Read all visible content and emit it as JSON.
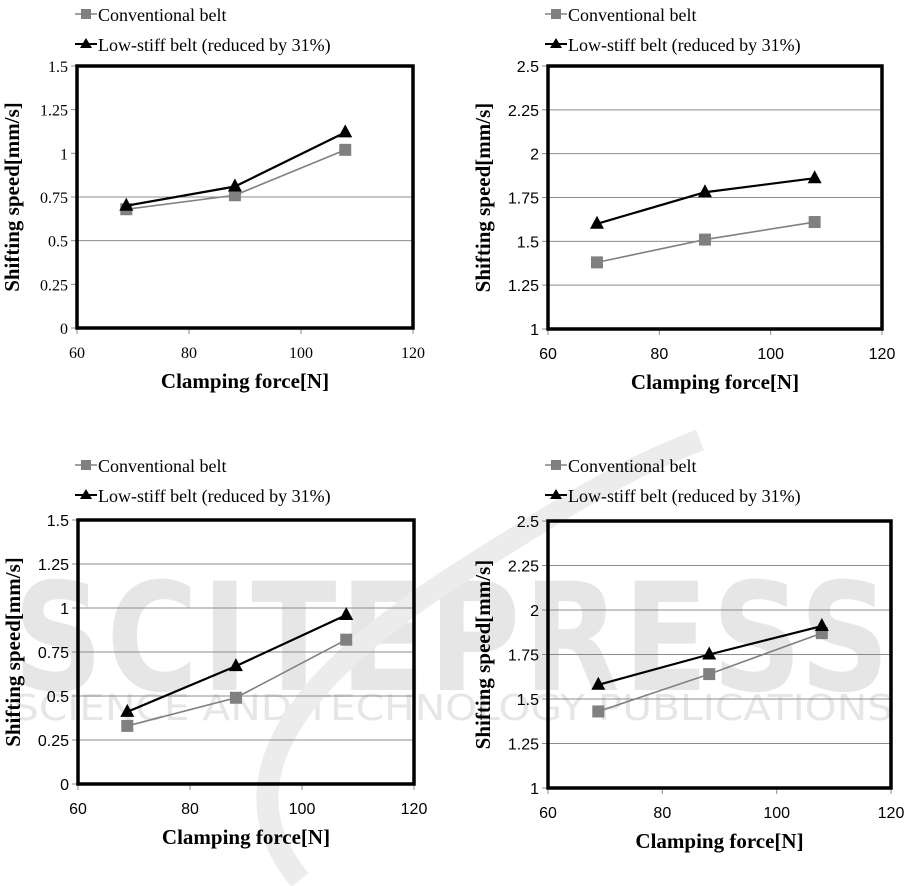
{
  "watermark": {
    "main": "SCITEPRESS",
    "sub": "SCIENCE AND TECHNOLOGY PUBLICATIONS",
    "color": "#d9d9d9"
  },
  "colors": {
    "conventional": "#808080",
    "lowstiff": "#000000",
    "grid": "#8c8c8c",
    "frame": "#000000"
  },
  "chart_data": [
    {
      "id": "top-left",
      "type": "line",
      "title": "",
      "xlabel": "Clamping force[N]",
      "ylabel": "Shifting speed[mm/s]",
      "xlim": [
        60,
        120
      ],
      "ylim": [
        0,
        1.5
      ],
      "xticks": [
        60,
        80,
        100,
        120
      ],
      "xtick_labels": [
        "60",
        "80",
        "100",
        "120"
      ],
      "yticks": [
        0,
        0.25,
        0.5,
        0.75,
        1,
        1.25,
        1.5
      ],
      "ytick_labels": [
        "0",
        "0.25",
        "0.5",
        "0.75",
        "1",
        "1.25",
        "1.5"
      ],
      "gridlines_y": [
        0.5,
        0.75
      ],
      "tick_font": "serif",
      "legend_position": "top-left, above plot",
      "x": [
        68.8,
        88.2,
        107.9
      ],
      "series": [
        {
          "name": "Conventional belt",
          "marker": "square",
          "values": [
            0.68,
            0.76,
            1.02
          ]
        },
        {
          "name": "Low-stiff belt (reduced by 31%)",
          "marker": "triangle",
          "values": [
            0.7,
            0.81,
            1.12
          ]
        }
      ]
    },
    {
      "id": "top-right",
      "type": "line",
      "title": "",
      "xlabel": "Clamping force[N]",
      "ylabel": "Shifting speed[mm/s]",
      "xlim": [
        60,
        120
      ],
      "ylim": [
        1,
        2.5
      ],
      "xticks": [
        60,
        80,
        100,
        120
      ],
      "xtick_labels": [
        "60",
        "80",
        "100",
        "120"
      ],
      "yticks": [
        1,
        1.25,
        1.5,
        1.75,
        2,
        2.25,
        2.5
      ],
      "ytick_labels": [
        "1",
        "1.25",
        "1.5",
        "1.75",
        "2",
        "2.25",
        "2.5"
      ],
      "gridlines_y": [
        1.25,
        1.5,
        1.75,
        2,
        2.25
      ],
      "tick_font": "sans",
      "legend_position": "top-left, above plot",
      "x": [
        68.8,
        88.2,
        107.9
      ],
      "series": [
        {
          "name": "Conventional belt",
          "marker": "square",
          "values": [
            1.38,
            1.51,
            1.61
          ]
        },
        {
          "name": "Low-stiff belt (reduced by 31%)",
          "marker": "triangle",
          "values": [
            1.6,
            1.78,
            1.86
          ]
        }
      ]
    },
    {
      "id": "bottom-left",
      "type": "line",
      "title": "",
      "xlabel": "Clamping force[N]",
      "ylabel": "Shifting speed[mm/s]",
      "xlim": [
        60,
        120
      ],
      "ylim": [
        0,
        1.5
      ],
      "xticks": [
        60,
        80,
        100,
        120
      ],
      "xtick_labels": [
        "60",
        "80",
        "100",
        "120"
      ],
      "yticks": [
        0,
        0.25,
        0.5,
        0.75,
        1,
        1.25,
        1.5
      ],
      "ytick_labels": [
        "0",
        "0.25",
        "0.5",
        "0.75",
        "1",
        "1.25",
        "1.5"
      ],
      "gridlines_y": [
        0.25,
        0.5,
        0.75,
        1,
        1.25
      ],
      "tick_font": "sans",
      "legend_position": "top-left, above plot",
      "x": [
        68.8,
        88.2,
        107.9
      ],
      "series": [
        {
          "name": "Conventional belt",
          "marker": "square",
          "values": [
            0.33,
            0.49,
            0.82
          ]
        },
        {
          "name": "Low-stiff belt (reduced by 31%)",
          "marker": "triangle",
          "values": [
            0.41,
            0.67,
            0.96
          ]
        }
      ]
    },
    {
      "id": "bottom-right",
      "type": "line",
      "title": "",
      "xlabel": "Clamping force[N]",
      "ylabel": "Shifting speed[mm/s]",
      "xlim": [
        60,
        120
      ],
      "ylim": [
        1,
        2.5
      ],
      "xticks": [
        60,
        80,
        100,
        120
      ],
      "xtick_labels": [
        "60",
        "80",
        "100",
        "120"
      ],
      "yticks": [
        1,
        1.25,
        1.5,
        1.75,
        2,
        2.25,
        2.5
      ],
      "ytick_labels": [
        "1",
        "1.25",
        "1.5",
        "1.75",
        "2",
        "2.25",
        "2.5"
      ],
      "gridlines_y": [
        1.25,
        1.5,
        1.75,
        2,
        2.25
      ],
      "tick_font": "sans",
      "legend_position": "top-left, above plot",
      "x": [
        68.8,
        88.2,
        107.9
      ],
      "series": [
        {
          "name": "Conventional belt",
          "marker": "square",
          "values": [
            1.43,
            1.64,
            1.87
          ]
        },
        {
          "name": "Low-stiff belt (reduced by 31%)",
          "marker": "triangle",
          "values": [
            1.58,
            1.75,
            1.91
          ]
        }
      ]
    }
  ]
}
